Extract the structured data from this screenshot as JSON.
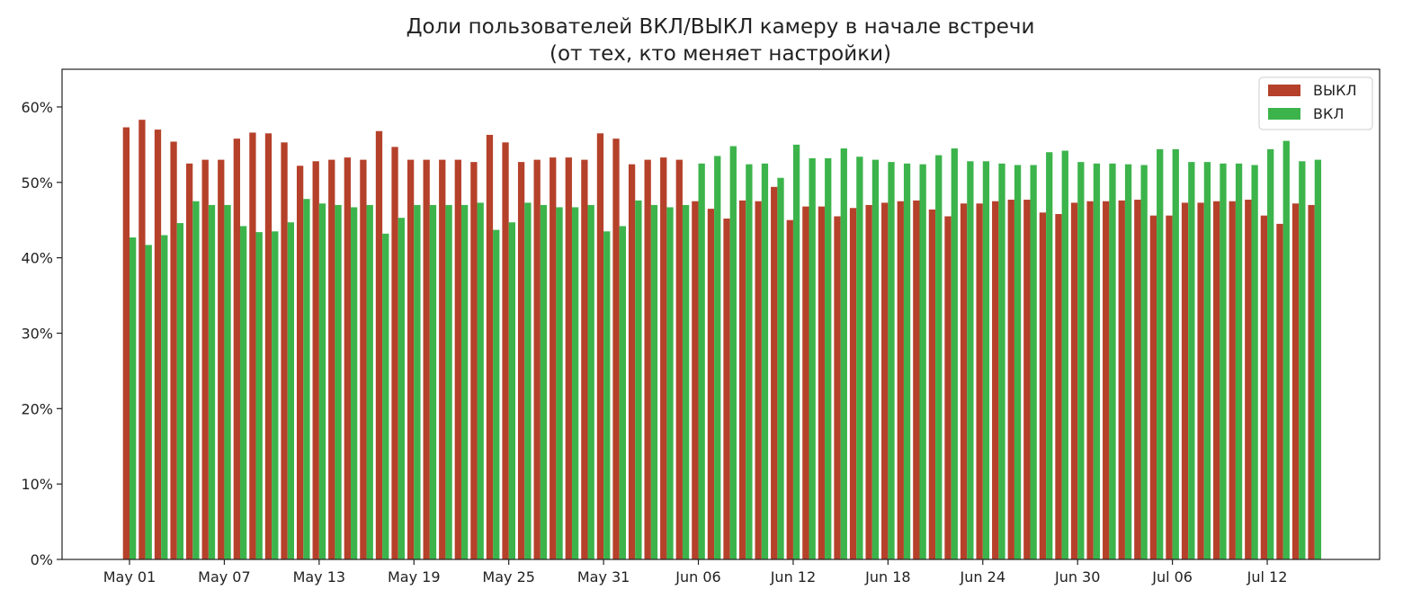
{
  "chart_data": {
    "type": "bar",
    "title": "Доли пользователей ВКЛ/ВЫКЛ камеру в начале встречи",
    "subtitle": "(от тех, кто меняет настройки)",
    "xlabel": "",
    "ylabel": "",
    "ylim": [
      0,
      0.65
    ],
    "y_ticks": [
      0,
      0.1,
      0.2,
      0.3,
      0.4,
      0.5,
      0.6
    ],
    "y_tick_labels": [
      "0%",
      "10%",
      "20%",
      "30%",
      "40%",
      "50%",
      "60%"
    ],
    "x_tick_labels": [
      "May 01",
      "May 07",
      "May 13",
      "May 19",
      "May 25",
      "May 31",
      "Jun 06",
      "Jun 12",
      "Jun 18",
      "Jun 24",
      "Jun 30",
      "Jul 06",
      "Jul 12"
    ],
    "x_tick_every": 6,
    "grid": false,
    "legend_position": "top-right",
    "colors": {
      "off": "#b5412a",
      "on": "#3cb44b"
    },
    "categories": [
      "May 01",
      "May 02",
      "May 03",
      "May 04",
      "May 05",
      "May 06",
      "May 07",
      "May 08",
      "May 09",
      "May 10",
      "May 11",
      "May 12",
      "May 13",
      "May 14",
      "May 15",
      "May 16",
      "May 17",
      "May 18",
      "May 19",
      "May 20",
      "May 21",
      "May 22",
      "May 23",
      "May 24",
      "May 25",
      "May 26",
      "May 27",
      "May 28",
      "May 29",
      "May 30",
      "May 31",
      "Jun 01",
      "Jun 02",
      "Jun 03",
      "Jun 04",
      "Jun 05",
      "Jun 06",
      "Jun 07",
      "Jun 08",
      "Jun 09",
      "Jun 10",
      "Jun 11",
      "Jun 12",
      "Jun 13",
      "Jun 14",
      "Jun 15",
      "Jun 16",
      "Jun 17",
      "Jun 18",
      "Jun 19",
      "Jun 20",
      "Jun 21",
      "Jun 22",
      "Jun 23",
      "Jun 24",
      "Jun 25",
      "Jun 26",
      "Jun 27",
      "Jun 28",
      "Jun 29",
      "Jun 30",
      "Jul 01",
      "Jul 02",
      "Jul 03",
      "Jul 04",
      "Jul 05",
      "Jul 06",
      "Jul 07",
      "Jul 08",
      "Jul 09",
      "Jul 10",
      "Jul 11",
      "Jul 12",
      "Jul 13",
      "Jul 14",
      "Jul 15"
    ],
    "series": [
      {
        "name": "ВЫКЛ",
        "values": [
          0.573,
          0.583,
          0.57,
          0.554,
          0.525,
          0.53,
          0.53,
          0.558,
          0.566,
          0.565,
          0.553,
          0.522,
          0.528,
          0.53,
          0.533,
          0.53,
          0.568,
          0.547,
          0.53,
          0.53,
          0.53,
          0.53,
          0.527,
          0.563,
          0.553,
          0.527,
          0.53,
          0.533,
          0.533,
          0.53,
          0.565,
          0.558,
          0.524,
          0.53,
          0.533,
          0.53,
          0.475,
          0.465,
          0.452,
          0.476,
          0.475,
          0.494,
          0.45,
          0.468,
          0.468,
          0.455,
          0.466,
          0.47,
          0.473,
          0.475,
          0.476,
          0.464,
          0.455,
          0.472,
          0.472,
          0.475,
          0.477,
          0.477,
          0.46,
          0.458,
          0.473,
          0.475,
          0.475,
          0.476,
          0.477,
          0.456,
          0.456,
          0.473,
          0.473,
          0.475,
          0.475,
          0.477,
          0.456,
          0.445,
          0.472,
          0.47
        ]
      },
      {
        "name": "ВКЛ",
        "values": [
          0.427,
          0.417,
          0.43,
          0.446,
          0.475,
          0.47,
          0.47,
          0.442,
          0.434,
          0.435,
          0.447,
          0.478,
          0.472,
          0.47,
          0.467,
          0.47,
          0.432,
          0.453,
          0.47,
          0.47,
          0.47,
          0.47,
          0.473,
          0.437,
          0.447,
          0.473,
          0.47,
          0.467,
          0.467,
          0.47,
          0.435,
          0.442,
          0.476,
          0.47,
          0.467,
          0.47,
          0.525,
          0.535,
          0.548,
          0.524,
          0.525,
          0.506,
          0.55,
          0.532,
          0.532,
          0.545,
          0.534,
          0.53,
          0.527,
          0.525,
          0.524,
          0.536,
          0.545,
          0.528,
          0.528,
          0.525,
          0.523,
          0.523,
          0.54,
          0.542,
          0.527,
          0.525,
          0.525,
          0.524,
          0.523,
          0.544,
          0.544,
          0.527,
          0.527,
          0.525,
          0.525,
          0.523,
          0.544,
          0.555,
          0.528,
          0.53
        ]
      }
    ]
  }
}
